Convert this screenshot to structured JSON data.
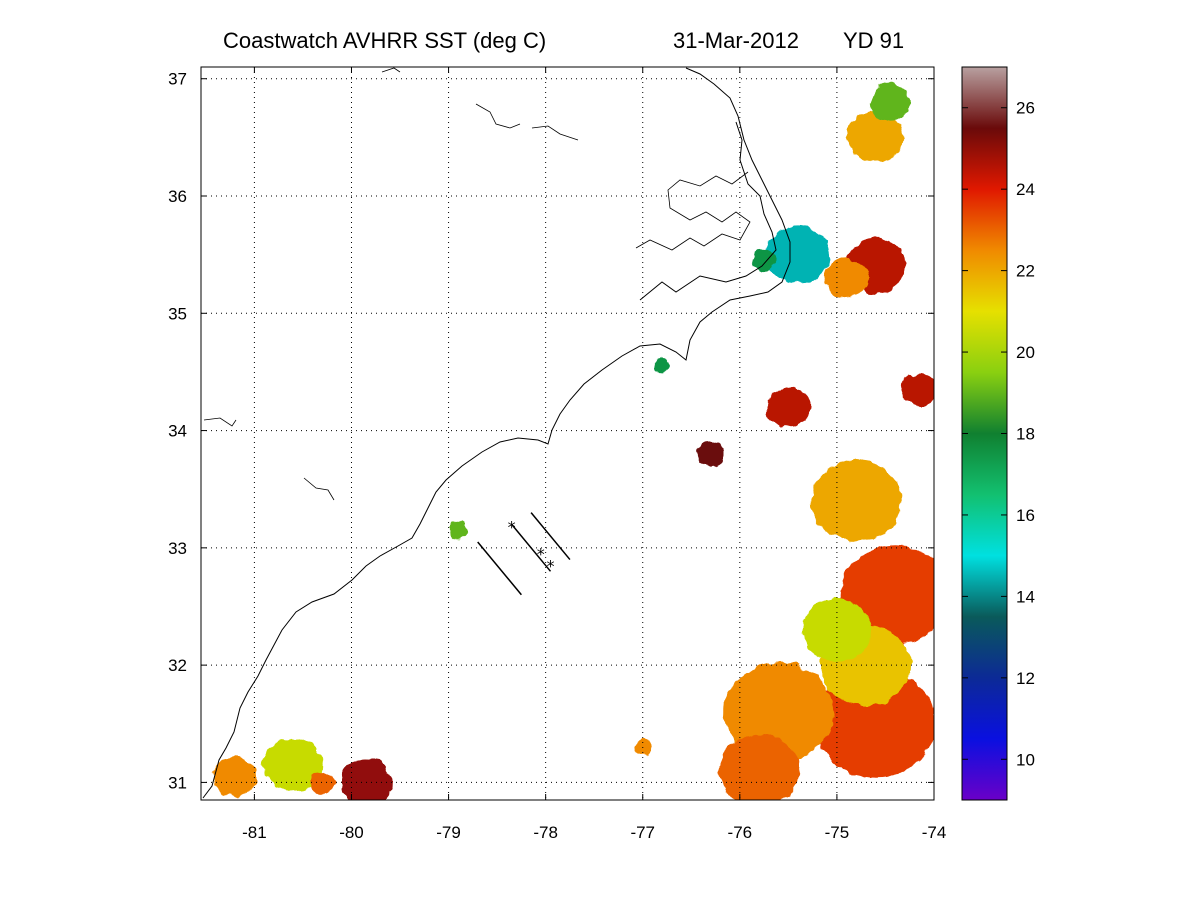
{
  "title": {
    "product": "Coastwatch   AVHRR   SST  (deg C)",
    "date": "31-Mar-2012",
    "yearday": "YD 91"
  },
  "map": {
    "lon_range": [
      -81.55,
      -74.0
    ],
    "lat_range": [
      30.85,
      37.1
    ],
    "lon_ticks": [
      -81,
      -80,
      -79,
      -78,
      -77,
      -76,
      -75,
      -74
    ],
    "lat_ticks": [
      31,
      32,
      33,
      34,
      35,
      36,
      37
    ],
    "grid": "dotted",
    "transects": [
      {
        "from": [
          -78.7,
          33.05
        ],
        "to": [
          -78.25,
          32.6
        ]
      },
      {
        "from": [
          -78.35,
          33.2
        ],
        "to": [
          -77.95,
          32.8
        ]
      },
      {
        "from": [
          -78.15,
          33.3
        ],
        "to": [
          -77.75,
          32.9
        ]
      }
    ],
    "stations": [
      [
        -78.35,
        33.18
      ],
      [
        -78.05,
        32.95
      ],
      [
        -77.95,
        32.85
      ]
    ]
  },
  "colorbar": {
    "range": [
      9,
      27
    ],
    "ticks": [
      10,
      12,
      14,
      16,
      18,
      20,
      22,
      24,
      26
    ],
    "colors": [
      "#6a00c8",
      "#0a10e0",
      "#0c2a96",
      "#0a5a5a",
      "#00e0e0",
      "#12c070",
      "#108030",
      "#8ad010",
      "#e6e000",
      "#f08a00",
      "#e01800",
      "#6a0a0a",
      "#b8a0a0"
    ]
  },
  "chart_data": {
    "type": "heatmap",
    "title": "Coastwatch   AVHRR   SST  (deg C)   31-Mar-2012   YD 91",
    "xlabel": "",
    "ylabel": "",
    "xlim": [
      -81.55,
      -74.0
    ],
    "ylim": [
      30.85,
      37.1
    ],
    "colorbar_range": [
      9,
      27
    ],
    "sst_patches": [
      {
        "lon": -74.6,
        "lat": 31.5,
        "sst": 23.5
      },
      {
        "lon": -74.4,
        "lat": 32.6,
        "sst": 23.5
      },
      {
        "lon": -74.7,
        "lat": 32.0,
        "sst": 21.5
      },
      {
        "lon": -75.6,
        "lat": 31.6,
        "sst": 22.5
      },
      {
        "lon": -75.8,
        "lat": 31.1,
        "sst": 23.0
      },
      {
        "lon": -74.8,
        "lat": 33.4,
        "sst": 22.0
      },
      {
        "lon": -75.0,
        "lat": 32.3,
        "sst": 20.5
      },
      {
        "lon": -74.6,
        "lat": 35.4,
        "sst": 24.5
      },
      {
        "lon": -74.9,
        "lat": 35.3,
        "sst": 22.5
      },
      {
        "lon": -75.4,
        "lat": 35.5,
        "sst": 14.5
      },
      {
        "lon": -75.75,
        "lat": 35.45,
        "sst": 17.5
      },
      {
        "lon": -74.6,
        "lat": 36.5,
        "sst": 22.0
      },
      {
        "lon": -74.45,
        "lat": 36.8,
        "sst": 19.0
      },
      {
        "lon": -74.15,
        "lat": 34.35,
        "sst": 24.5
      },
      {
        "lon": -76.3,
        "lat": 33.8,
        "sst": 25.5
      },
      {
        "lon": -75.5,
        "lat": 34.2,
        "sst": 24.5
      },
      {
        "lon": -80.6,
        "lat": 31.15,
        "sst": 20.5
      },
      {
        "lon": -81.2,
        "lat": 31.05,
        "sst": 22.5
      },
      {
        "lon": -79.85,
        "lat": 31.0,
        "sst": 25.0
      },
      {
        "lon": -80.3,
        "lat": 31.0,
        "sst": 23.0
      },
      {
        "lon": -78.9,
        "lat": 33.15,
        "sst": 19.0
      },
      {
        "lon": -76.8,
        "lat": 34.55,
        "sst": 17.5
      },
      {
        "lon": -77.0,
        "lat": 31.3,
        "sst": 22.5
      }
    ]
  }
}
